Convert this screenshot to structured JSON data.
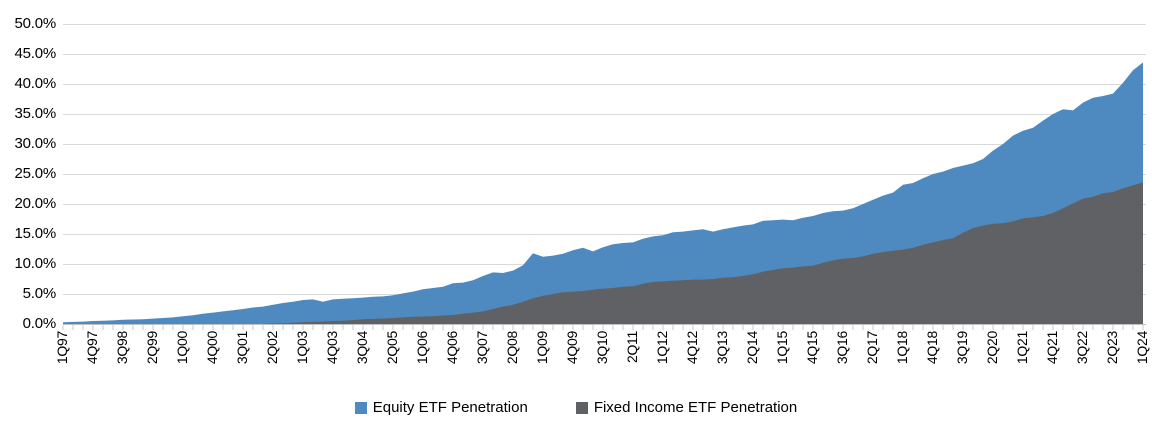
{
  "chart_data": {
    "type": "area",
    "mode": "overlapping",
    "title": "",
    "xlabel": "",
    "ylabel": "",
    "ylim": [
      0,
      50
    ],
    "grid": true,
    "legend_position": "bottom",
    "x_unit": "quarter",
    "x_start": "1Q97",
    "x_end": "1Q24",
    "points_per_tick_label": 3,
    "y_ticks": [
      "50.0%",
      "45.0%",
      "40.0%",
      "35.0%",
      "30.0%",
      "25.0%",
      "20.0%",
      "15.0%",
      "10.0%",
      "5.0%",
      "0.0%"
    ],
    "x_tick_labels": [
      "1Q97",
      "4Q97",
      "3Q98",
      "2Q99",
      "1Q00",
      "4Q00",
      "3Q01",
      "2Q02",
      "1Q03",
      "4Q03",
      "3Q04",
      "2Q05",
      "1Q06",
      "4Q06",
      "3Q07",
      "2Q08",
      "1Q09",
      "4Q09",
      "3Q10",
      "2Q11",
      "1Q12",
      "4Q12",
      "3Q13",
      "2Q14",
      "1Q15",
      "4Q15",
      "3Q16",
      "2Q17",
      "1Q18",
      "4Q18",
      "3Q19",
      "2Q20",
      "1Q21",
      "4Q21",
      "3Q22",
      "2Q23",
      "1Q24"
    ],
    "series": [
      {
        "name": "Equity ETF Penetration",
        "color": "#4E8ABF",
        "values": [
          0.3,
          0.35,
          0.4,
          0.5,
          0.55,
          0.6,
          0.7,
          0.75,
          0.8,
          0.9,
          1.0,
          1.1,
          1.3,
          1.45,
          1.7,
          1.9,
          2.1,
          2.3,
          2.5,
          2.75,
          2.9,
          3.2,
          3.5,
          3.7,
          4.0,
          4.1,
          3.7,
          4.1,
          4.2,
          4.3,
          4.4,
          4.55,
          4.6,
          4.8,
          5.1,
          5.4,
          5.8,
          6.0,
          6.2,
          6.8,
          6.9,
          7.3,
          8.0,
          8.6,
          8.5,
          8.9,
          9.8,
          11.8,
          11.2,
          11.4,
          11.7,
          12.3,
          12.7,
          12.1,
          12.8,
          13.3,
          13.5,
          13.6,
          14.2,
          14.6,
          14.8,
          15.3,
          15.4,
          15.6,
          15.8,
          15.4,
          15.8,
          16.1,
          16.4,
          16.6,
          17.2,
          17.3,
          17.4,
          17.3,
          17.7,
          18.0,
          18.5,
          18.8,
          18.9,
          19.3,
          20.0,
          20.7,
          21.4,
          21.9,
          23.2,
          23.5,
          24.3,
          25.0,
          25.4,
          26.0,
          26.4,
          26.8,
          27.5,
          28.9,
          30.0,
          31.4,
          32.2,
          32.7,
          33.9,
          35.0,
          35.8,
          35.6,
          36.9,
          37.7,
          38.0,
          38.4,
          40.2,
          42.3,
          43.6
        ]
      },
      {
        "name": "Fixed Income ETF Penetration",
        "color": "#5F6165",
        "values": [
          0,
          0,
          0,
          0,
          0,
          0,
          0,
          0,
          0,
          0,
          0,
          0,
          0,
          0,
          0,
          0,
          0,
          0,
          0,
          0,
          0.0,
          0.1,
          0.1,
          0.2,
          0.3,
          0.35,
          0.4,
          0.5,
          0.55,
          0.65,
          0.8,
          0.85,
          0.9,
          1.0,
          1.1,
          1.2,
          1.25,
          1.3,
          1.4,
          1.5,
          1.7,
          1.9,
          2.1,
          2.5,
          2.9,
          3.2,
          3.7,
          4.3,
          4.7,
          5.0,
          5.3,
          5.4,
          5.5,
          5.7,
          5.9,
          6.0,
          6.2,
          6.3,
          6.7,
          7.0,
          7.1,
          7.2,
          7.3,
          7.4,
          7.4,
          7.5,
          7.7,
          7.8,
          8.0,
          8.3,
          8.7,
          9.0,
          9.3,
          9.4,
          9.6,
          9.7,
          10.2,
          10.6,
          10.9,
          11.0,
          11.3,
          11.7,
          12.0,
          12.2,
          12.4,
          12.7,
          13.2,
          13.6,
          14.0,
          14.3,
          15.2,
          16.0,
          16.4,
          16.7,
          16.8,
          17.1,
          17.6,
          17.8,
          18.0,
          18.5,
          19.3,
          20.1,
          20.9,
          21.2,
          21.8,
          22.0,
          22.6,
          23.1,
          23.6
        ]
      }
    ],
    "colors": {
      "gridline": "#D9D9D9",
      "axis_line": "#C0C0C0",
      "tick": "#C9C9C9",
      "text": "#000000"
    }
  },
  "legend": {
    "items": [
      {
        "label": "Equity ETF Penetration",
        "color": "#4E8ABF"
      },
      {
        "label": "Fixed Income ETF Penetration",
        "color": "#5F6165"
      }
    ]
  }
}
